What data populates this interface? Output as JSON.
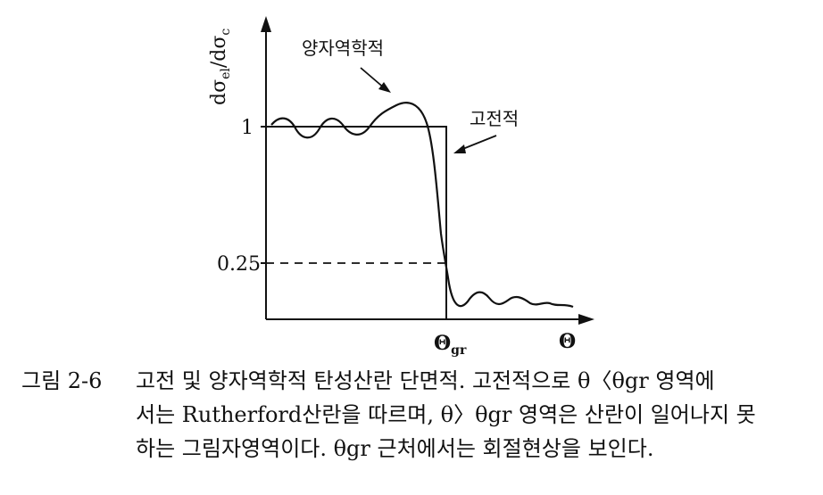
{
  "figure": {
    "ylabel": "dσel/dσc",
    "ylabel_main": "dσ",
    "ylabel_sub1": "el",
    "ylabel_sub2": "c",
    "curve_label_quantum": "양자역학적",
    "curve_label_classical": "고전적",
    "ytick_1": "1",
    "ytick_025": "0.25",
    "xtick_gr_main": "Θ",
    "xtick_gr_sub": "gr",
    "xaxis_label": "Θ"
  },
  "chart_data": {
    "type": "line",
    "title": "",
    "ylabel": "dσel/dσc",
    "xlabel": "Θ",
    "yticks": [
      "1",
      "0.25"
    ],
    "xticks": [
      "Θgr"
    ],
    "series": [
      {
        "name": "양자역학적",
        "description_values": "oscillates around 1 below Θgr, drops to 0.25 at Θgr, then small oscillations near 0"
      },
      {
        "name": "고전적",
        "values_desc": "step function: 1 for Θ < Θgr, 0 for Θ > Θgr"
      }
    ],
    "dashed_reference": 0.25
  },
  "caption": {
    "number": "그림 2-6",
    "line1": "고전 및 양자역학적 탄성산란 단면적. 고전적으로 θ〈θgr 영역에",
    "line2": "서는 Rutherford산란을 따르며, θ〉θgr 영역은 산란이 일어나지 못",
    "line3": "하는 그림자영역이다. θgr 근처에서는 회절현상을 보인다."
  }
}
